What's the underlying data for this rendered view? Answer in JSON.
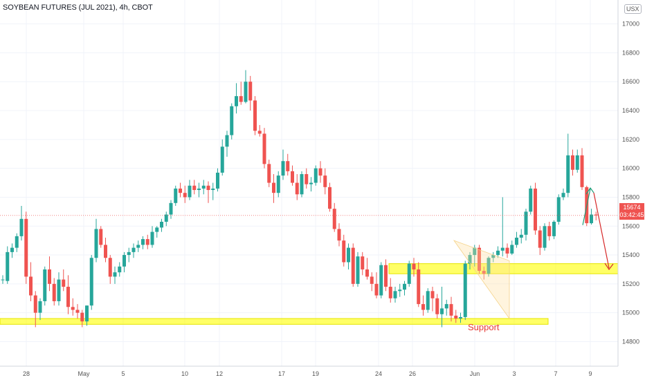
{
  "header": {
    "title": "SOYBEAN FUTURES (JUL 2021), 4h, CBOT",
    "currency": "USX"
  },
  "price_tag": {
    "last_price": "15674",
    "countdown": "03:42:45"
  },
  "colors": {
    "up": "#26a69a",
    "down": "#ef5350",
    "zone": "#ffff00",
    "annotation_up": "#1b9e77",
    "annotation_down": "#d62728",
    "support_text": "#e53935",
    "grid": "#f0f3fa"
  },
  "chart_data": {
    "type": "candlestick",
    "title": "SOYBEAN FUTURES (JUL 2021), 4h, CBOT",
    "xlabel": "",
    "ylabel": "",
    "y_axis_side": "right",
    "ylim": [
      14630,
      17070
    ],
    "y_ticks": [
      14800,
      15000,
      15200,
      15400,
      15600,
      15800,
      16000,
      16200,
      16400,
      16600,
      16800,
      17000
    ],
    "x_tick_labels": [
      "28",
      "May",
      "5",
      "10",
      "12",
      "17",
      "19",
      "24",
      "26",
      "Jun",
      "3",
      "7",
      "9"
    ],
    "grid": true,
    "last_price": 15674,
    "candles": [
      [
        15230,
        15260,
        15200,
        15230
      ],
      [
        15220,
        15460,
        15200,
        15420
      ],
      [
        15420,
        15480,
        15380,
        15450
      ],
      [
        15450,
        15550,
        15420,
        15530
      ],
      [
        15530,
        15740,
        15500,
        15650
      ],
      [
        15650,
        15700,
        15200,
        15250
      ],
      [
        15250,
        15350,
        15080,
        15120
      ],
      [
        15120,
        15150,
        14900,
        15000
      ],
      [
        15000,
        15100,
        14950,
        15080
      ],
      [
        15080,
        15320,
        15050,
        15300
      ],
      [
        15300,
        15390,
        15150,
        15200
      ],
      [
        15200,
        15240,
        15050,
        15080
      ],
      [
        15080,
        15280,
        15050,
        15230
      ],
      [
        15230,
        15300,
        15150,
        15180
      ],
      [
        15180,
        15260,
        14990,
        15040
      ],
      [
        15040,
        15100,
        14980,
        15020
      ],
      [
        15020,
        15060,
        14960,
        15000
      ],
      [
        15000,
        15020,
        14900,
        14940
      ],
      [
        14940,
        15050,
        14910,
        15050
      ],
      [
        15050,
        15400,
        15020,
        15380
      ],
      [
        15380,
        15650,
        15350,
        15580
      ],
      [
        15580,
        15600,
        15450,
        15470
      ],
      [
        15470,
        15520,
        15350,
        15380
      ],
      [
        15380,
        15400,
        15200,
        15250
      ],
      [
        15250,
        15320,
        15200,
        15280
      ],
      [
        15280,
        15350,
        15250,
        15320
      ],
      [
        15320,
        15420,
        15280,
        15400
      ],
      [
        15400,
        15450,
        15350,
        15420
      ],
      [
        15420,
        15480,
        15380,
        15450
      ],
      [
        15450,
        15500,
        15420,
        15470
      ],
      [
        15470,
        15530,
        15440,
        15510
      ],
      [
        15510,
        15540,
        15440,
        15470
      ],
      [
        15470,
        15600,
        15450,
        15560
      ],
      [
        15560,
        15600,
        15520,
        15590
      ],
      [
        15590,
        15650,
        15560,
        15630
      ],
      [
        15630,
        15700,
        15600,
        15680
      ],
      [
        15680,
        15780,
        15650,
        15760
      ],
      [
        15760,
        15880,
        15740,
        15860
      ],
      [
        15860,
        15900,
        15800,
        15830
      ],
      [
        15830,
        15880,
        15760,
        15800
      ],
      [
        15800,
        15920,
        15780,
        15880
      ],
      [
        15880,
        15920,
        15820,
        15850
      ],
      [
        15850,
        15900,
        15800,
        15860
      ],
      [
        15860,
        15920,
        15820,
        15880
      ],
      [
        15880,
        15910,
        15760,
        15850
      ],
      [
        15850,
        15900,
        15780,
        15860
      ],
      [
        15860,
        16000,
        15840,
        15970
      ],
      [
        15970,
        16200,
        15950,
        16150
      ],
      [
        16150,
        16260,
        16080,
        16230
      ],
      [
        16230,
        16450,
        16200,
        16430
      ],
      [
        16430,
        16590,
        16380,
        16500
      ],
      [
        16500,
        16600,
        16440,
        16460
      ],
      [
        16460,
        16680,
        16450,
        16600
      ],
      [
        16600,
        16640,
        16400,
        16470
      ],
      [
        16470,
        16500,
        16230,
        16260
      ],
      [
        16260,
        16300,
        16220,
        16240
      ],
      [
        16240,
        16280,
        16000,
        16030
      ],
      [
        16030,
        16060,
        15870,
        15900
      ],
      [
        15900,
        15960,
        15760,
        15830
      ],
      [
        15830,
        15980,
        15800,
        15950
      ],
      [
        15950,
        16130,
        15920,
        16050
      ],
      [
        16050,
        16100,
        15950,
        15980
      ],
      [
        15980,
        16020,
        15880,
        15900
      ],
      [
        15900,
        15960,
        15780,
        15820
      ],
      [
        15820,
        15980,
        15800,
        15960
      ],
      [
        15960,
        16000,
        15860,
        15890
      ],
      [
        15890,
        15940,
        15840,
        15900
      ],
      [
        15900,
        16020,
        15880,
        16000
      ],
      [
        16000,
        16050,
        15900,
        15950
      ],
      [
        15950,
        16000,
        15820,
        15870
      ],
      [
        15870,
        15900,
        15700,
        15720
      ],
      [
        15720,
        15760,
        15560,
        15580
      ],
      [
        15580,
        15620,
        15460,
        15500
      ],
      [
        15500,
        15540,
        15320,
        15350
      ],
      [
        15350,
        15480,
        15300,
        15450
      ],
      [
        15450,
        15480,
        15180,
        15200
      ],
      [
        15200,
        15420,
        15180,
        15390
      ],
      [
        15390,
        15420,
        15260,
        15300
      ],
      [
        15300,
        15380,
        15230,
        15250
      ],
      [
        15250,
        15280,
        15150,
        15200
      ],
      [
        15200,
        15280,
        15100,
        15120
      ],
      [
        15120,
        15350,
        15100,
        15330
      ],
      [
        15330,
        15370,
        15150,
        15180
      ],
      [
        15180,
        15240,
        15070,
        15100
      ],
      [
        15100,
        15180,
        15070,
        15150
      ],
      [
        15150,
        15200,
        15110,
        15160
      ],
      [
        15160,
        15220,
        15120,
        15200
      ],
      [
        15200,
        15360,
        15180,
        15340
      ],
      [
        15340,
        15380,
        15250,
        15300
      ],
      [
        15300,
        15350,
        15040,
        15060
      ],
      [
        15060,
        15120,
        14980,
        15020
      ],
      [
        15020,
        15170,
        15000,
        15150
      ],
      [
        15150,
        15180,
        15010,
        15100
      ],
      [
        15100,
        15130,
        14960,
        14990
      ],
      [
        14990,
        15180,
        14900,
        15030
      ],
      [
        15030,
        15090,
        14980,
        15060
      ],
      [
        15060,
        15110,
        14940,
        14980
      ],
      [
        14980,
        15020,
        14930,
        14960
      ],
      [
        14960,
        15000,
        14930,
        14970
      ],
      [
        14970,
        15360,
        14950,
        15340
      ],
      [
        15340,
        15420,
        15300,
        15400
      ],
      [
        15400,
        15470,
        15320,
        15450
      ],
      [
        15450,
        15470,
        15270,
        15290
      ],
      [
        15290,
        15320,
        15230,
        15270
      ],
      [
        15270,
        15390,
        15250,
        15380
      ],
      [
        15380,
        15420,
        15350,
        15400
      ],
      [
        15400,
        15460,
        15380,
        15430
      ],
      [
        15430,
        15800,
        15390,
        15450
      ],
      [
        15450,
        15480,
        15380,
        15410
      ],
      [
        15410,
        15500,
        15400,
        15470
      ],
      [
        15470,
        15560,
        15450,
        15520
      ],
      [
        15520,
        15580,
        15480,
        15540
      ],
      [
        15540,
        15720,
        15500,
        15700
      ],
      [
        15700,
        15880,
        15680,
        15860
      ],
      [
        15860,
        15900,
        15540,
        15570
      ],
      [
        15570,
        15600,
        15400,
        15450
      ],
      [
        15450,
        15620,
        15430,
        15600
      ],
      [
        15600,
        15630,
        15500,
        15530
      ],
      [
        15530,
        15640,
        15510,
        15630
      ],
      [
        15630,
        15820,
        15610,
        15800
      ],
      [
        15800,
        15860,
        15780,
        15830
      ],
      [
        15830,
        16240,
        15800,
        16090
      ],
      [
        16090,
        16130,
        15950,
        15990
      ],
      [
        15990,
        16130,
        15970,
        16090
      ],
      [
        16090,
        16140,
        15850,
        15870
      ],
      [
        15870,
        15880,
        15600,
        15620
      ],
      [
        15620,
        15720,
        15610,
        15680
      ],
      [
        15680,
        15700,
        15640,
        15674
      ]
    ],
    "zones": [
      {
        "name": "upper-zone",
        "low": 15270,
        "high": 15340
      },
      {
        "name": "support-zone",
        "low": 14920,
        "high": 14960
      }
    ],
    "annotations": {
      "support_label": "Support",
      "triangle": true,
      "projection_up": [
        15674,
        15850
      ],
      "projection_down": [
        15850,
        15300
      ]
    }
  }
}
